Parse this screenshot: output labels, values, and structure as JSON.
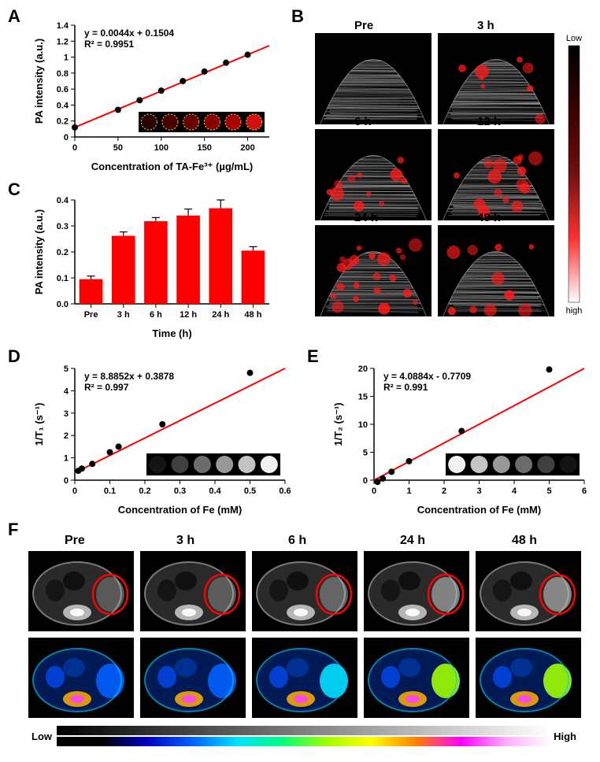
{
  "labels": {
    "A": "A",
    "B": "B",
    "C": "C",
    "D": "D",
    "E": "E",
    "F": "F"
  },
  "A": {
    "type": "scatter-linear",
    "x": [
      0,
      50,
      75,
      100,
      125,
      150,
      175,
      200
    ],
    "y": [
      0.12,
      0.34,
      0.46,
      0.58,
      0.7,
      0.82,
      0.93,
      1.03
    ],
    "marker_color": "#000000",
    "marker_size": 4,
    "line_color": "#ff0000",
    "line_width": 2,
    "xlabel": "Concentration of TA-Fe³⁺ (µg/mL)",
    "ylabel": "PA intensity (a.u.)",
    "xlim": [
      0,
      225
    ],
    "ylim": [
      0,
      1.4
    ],
    "xtick": [
      0,
      50,
      100,
      150,
      200
    ],
    "ytick": [
      0.0,
      0.2,
      0.4,
      0.6,
      0.8,
      1.0,
      1.2,
      1.4
    ],
    "eq": "y = 0.0044x + 0.1504\nR² = 0.9951",
    "label_fontsize": 13,
    "tick_fontsize": 11,
    "inset": {
      "wells": [
        "#2a0000",
        "#4a0000",
        "#6a0000",
        "#8a0000",
        "#aa0000",
        "#d01010"
      ],
      "outline": "#ffe000"
    }
  },
  "C": {
    "type": "bar",
    "categories": [
      "Pre",
      "3 h",
      "6 h",
      "12 h",
      "24 h",
      "48 h"
    ],
    "values": [
      0.095,
      0.262,
      0.318,
      0.34,
      0.368,
      0.205
    ],
    "errors": [
      0.012,
      0.015,
      0.014,
      0.025,
      0.032,
      0.015
    ],
    "bar_color": "#ff0000",
    "error_color": "#000000",
    "xlabel": "Time (h)",
    "ylabel": "PA intensity (a.u.)",
    "ylim": [
      0,
      0.4
    ],
    "ytick": [
      0.0,
      0.1,
      0.2,
      0.3,
      0.4
    ],
    "bar_width": 0.72,
    "label_fontsize": 13,
    "tick_fontsize": 11
  },
  "B": {
    "type": "image-grid",
    "labels": [
      "Pre",
      "3 h",
      "6 h",
      "12 h",
      "24 h",
      "48 h"
    ],
    "pa_overlay_intensity": [
      0.0,
      0.28,
      0.4,
      0.55,
      0.8,
      0.35
    ],
    "pa_color": "#ff1a1a",
    "us_gray_low": "#1a1a1a",
    "us_gray_high": "#cfcfcf",
    "colorbar": {
      "top_label": "Low",
      "bottom_label": "high",
      "stops": [
        "#000000",
        "#3a0000",
        "#701010",
        "#ff3030",
        "#ffffff"
      ]
    }
  },
  "D": {
    "type": "scatter-linear",
    "x": [
      0.01,
      0.02,
      0.05,
      0.1,
      0.125,
      0.25,
      0.5
    ],
    "y": [
      0.42,
      0.52,
      0.73,
      1.25,
      1.5,
      2.5,
      4.8
    ],
    "marker_color": "#000000",
    "marker_size": 4,
    "line_color": "#ff0000",
    "line_width": 2,
    "xlabel": "Concentration of Fe (mM)",
    "ylabel": "1/T₁ (s⁻¹)",
    "xlim": [
      0,
      0.6
    ],
    "ylim": [
      0,
      5
    ],
    "xtick": [
      0.0,
      0.1,
      0.2,
      0.3,
      0.4,
      0.5,
      0.6
    ],
    "ytick": [
      0,
      1,
      2,
      3,
      4,
      5
    ],
    "eq": "y = 8.8852x + 0.3878\nR² = 0.997",
    "label_fontsize": 13,
    "tick_fontsize": 11,
    "inset": {
      "mode": "dark-to-light",
      "circles": 6
    }
  },
  "E": {
    "type": "scatter-linear",
    "x": [
      0.1,
      0.25,
      0.5,
      1.0,
      2.5,
      5.0
    ],
    "y": [
      -0.3,
      0.3,
      1.5,
      3.4,
      8.8,
      19.8
    ],
    "marker_color": "#000000",
    "marker_size": 4,
    "line_color": "#ff0000",
    "line_width": 2,
    "xlabel": "Concentration of Fe (mM)",
    "ylabel": "1/T₂ (s⁻¹)",
    "xlim": [
      0,
      6
    ],
    "ylim": [
      0,
      20
    ],
    "xtick": [
      0,
      1,
      2,
      3,
      4,
      5,
      6
    ],
    "ytick": [
      0,
      5,
      10,
      15,
      20
    ],
    "eq": "y = 4.0884x - 0.7709\nR² = 0.991",
    "label_fontsize": 13,
    "tick_fontsize": 11,
    "inset": {
      "mode": "light-to-dark",
      "circles": 6
    }
  },
  "F": {
    "type": "mri-grid",
    "labels": [
      "Pre",
      "3 h",
      "6 h",
      "24 h",
      "48 h"
    ],
    "circle_color": "#ff0000",
    "circle_width": 2.5,
    "gray_row": {
      "low": "#050505",
      "high": "#f0f0f0"
    },
    "color_row": {
      "stops": [
        "#000000",
        "#000000",
        "#0000c0",
        "#0060ff",
        "#00e0ff",
        "#00ff80",
        "#a0ff00",
        "#ffff00",
        "#ff8000",
        "#ff00ff",
        "#ffb0ff",
        "#ffffff"
      ]
    },
    "tumor_signal": [
      0.3,
      0.32,
      0.38,
      0.55,
      0.58
    ],
    "colorbar": {
      "low": "Low",
      "high": "High",
      "gray_stops": [
        "#000000",
        "#ffffff"
      ],
      "rainbow_stops": [
        "#000000",
        "#000000",
        "#0000c0",
        "#0060ff",
        "#00e0ff",
        "#00ff80",
        "#a0ff00",
        "#ffff00",
        "#ff8000",
        "#ff00ff",
        "#ffb0ff",
        "#ffffff"
      ]
    }
  }
}
